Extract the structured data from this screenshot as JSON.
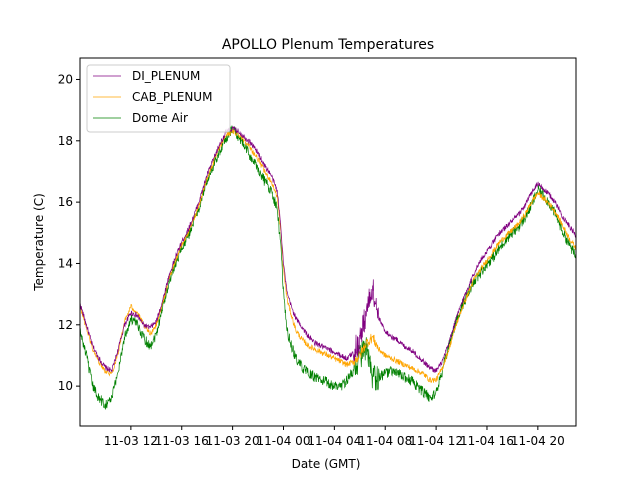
{
  "chart_data": {
    "type": "line",
    "title": "APOLLO Plenum Temperatures",
    "xlabel": "Date (GMT)",
    "ylabel": "Temperature (C)",
    "x_unit": "hours since 11-03 08:00",
    "xlim": [
      0,
      39
    ],
    "ylim": [
      8.7,
      20.7
    ],
    "yticks": [
      10,
      12,
      14,
      16,
      18,
      20
    ],
    "xticks": [
      {
        "x": 4,
        "label": "11-03 12"
      },
      {
        "x": 8,
        "label": "11-03 16"
      },
      {
        "x": 12,
        "label": "11-03 20"
      },
      {
        "x": 16,
        "label": "11-04 00"
      },
      {
        "x": 20,
        "label": "11-04 04"
      },
      {
        "x": 24,
        "label": "11-04 08"
      },
      {
        "x": 28,
        "label": "11-04 12"
      },
      {
        "x": 32,
        "label": "11-04 16"
      },
      {
        "x": 36,
        "label": "11-04 20"
      }
    ],
    "legend_position": "top-left",
    "series": [
      {
        "name": "DI_PLENUM",
        "color": "#800080",
        "x": [
          0,
          0.5,
          1,
          1.5,
          2,
          2.5,
          3,
          3.5,
          4,
          4.5,
          5,
          5.5,
          6,
          6.5,
          7,
          7.5,
          8,
          8.5,
          9,
          9.5,
          10,
          10.5,
          11,
          11.5,
          12,
          12.5,
          13,
          13.5,
          14,
          14.5,
          15,
          15.5,
          15.8,
          16.0,
          16.3,
          16.7,
          17,
          17.5,
          18,
          18.5,
          19,
          19.5,
          20,
          20.5,
          21,
          21.5,
          22,
          22.5,
          23,
          23.5,
          24,
          24.5,
          25,
          25.5,
          26,
          26.5,
          27,
          27.5,
          28,
          28.5,
          29,
          29.5,
          30,
          30.5,
          31,
          31.5,
          32,
          32.5,
          33,
          33.5,
          34,
          34.5,
          35,
          35.5,
          36,
          36.5,
          37,
          37.5,
          38,
          38.5,
          39
        ],
        "y": [
          12.7,
          12.0,
          11.3,
          10.9,
          10.6,
          10.5,
          11.2,
          12.0,
          12.4,
          12.3,
          12.0,
          11.9,
          12.1,
          12.8,
          13.6,
          14.2,
          14.7,
          15.1,
          15.6,
          16.2,
          16.9,
          17.4,
          17.9,
          18.3,
          18.4,
          18.3,
          18.1,
          17.9,
          17.6,
          17.2,
          16.9,
          16.4,
          15.2,
          14.0,
          13.0,
          12.5,
          12.2,
          11.9,
          11.6,
          11.4,
          11.3,
          11.2,
          11.1,
          11.0,
          10.9,
          11.1,
          11.5,
          12.4,
          13.2,
          12.2,
          11.8,
          11.6,
          11.5,
          11.3,
          11.2,
          11.0,
          10.8,
          10.6,
          10.5,
          10.8,
          11.4,
          12.1,
          12.7,
          13.2,
          13.7,
          14.1,
          14.4,
          14.7,
          15.0,
          15.2,
          15.4,
          15.6,
          15.9,
          16.3,
          16.6,
          16.4,
          16.2,
          15.9,
          15.5,
          15.2,
          14.9
        ]
      },
      {
        "name": "CAB_PLENUM",
        "color": "#ffa500",
        "x": [
          0,
          0.5,
          1,
          1.5,
          2,
          2.5,
          3,
          3.5,
          4,
          4.5,
          5,
          5.5,
          6,
          6.5,
          7,
          7.5,
          8,
          8.5,
          9,
          9.5,
          10,
          10.5,
          11,
          11.5,
          12,
          12.5,
          13,
          13.5,
          14,
          14.5,
          15,
          15.5,
          15.8,
          16.0,
          16.3,
          16.7,
          17,
          17.5,
          18,
          18.5,
          19,
          19.5,
          20,
          20.5,
          21,
          21.5,
          22,
          22.5,
          23,
          23.5,
          24,
          24.5,
          25,
          25.5,
          26,
          26.5,
          27,
          27.5,
          28,
          28.5,
          29,
          29.5,
          30,
          30.5,
          31,
          31.5,
          32,
          32.5,
          33,
          33.5,
          34,
          34.5,
          35,
          35.5,
          36,
          36.5,
          37,
          37.5,
          38,
          38.5,
          39
        ],
        "y": [
          12.6,
          11.9,
          11.2,
          10.8,
          10.5,
          10.4,
          11.1,
          12.1,
          12.6,
          12.4,
          12.0,
          11.7,
          12.0,
          12.7,
          13.5,
          14.1,
          14.6,
          15.0,
          15.5,
          16.1,
          16.8,
          17.3,
          17.8,
          18.2,
          18.3,
          18.2,
          18.0,
          17.7,
          17.4,
          17.0,
          16.7,
          16.2,
          15.0,
          13.8,
          12.8,
          12.2,
          11.8,
          11.5,
          11.3,
          11.2,
          11.1,
          11.0,
          10.9,
          10.8,
          10.7,
          10.8,
          11.0,
          11.4,
          11.6,
          11.2,
          11.0,
          10.9,
          10.8,
          10.7,
          10.6,
          10.5,
          10.4,
          10.2,
          10.2,
          10.6,
          11.2,
          11.9,
          12.5,
          13.0,
          13.5,
          13.8,
          14.1,
          14.4,
          14.7,
          14.9,
          15.1,
          15.3,
          15.6,
          16.0,
          16.3,
          16.1,
          15.9,
          15.6,
          15.2,
          14.8,
          14.5
        ]
      },
      {
        "name": "Dome Air",
        "color": "#008000",
        "x": [
          0,
          0.5,
          1,
          1.5,
          2,
          2.5,
          3,
          3.5,
          4,
          4.5,
          5,
          5.5,
          6,
          6.5,
          7,
          7.5,
          8,
          8.5,
          9,
          9.5,
          10,
          10.5,
          11,
          11.5,
          12,
          12.5,
          13,
          13.5,
          14,
          14.5,
          15,
          15.5,
          15.8,
          16.0,
          16.3,
          16.7,
          17,
          17.5,
          18,
          18.5,
          19,
          19.5,
          20,
          20.5,
          21,
          21.5,
          22,
          22.5,
          23,
          23.5,
          24,
          24.5,
          25,
          25.5,
          26,
          26.5,
          27,
          27.5,
          28,
          28.5,
          29,
          29.5,
          30,
          30.5,
          31,
          31.5,
          32,
          32.5,
          33,
          33.5,
          34,
          34.5,
          35,
          35.5,
          36,
          36.5,
          37,
          37.5,
          38,
          38.5,
          39
        ],
        "y": [
          11.8,
          11.0,
          10.0,
          9.6,
          9.4,
          9.6,
          10.5,
          11.6,
          12.2,
          12.0,
          11.6,
          11.3,
          11.7,
          12.6,
          13.4,
          14.0,
          14.5,
          14.9,
          15.4,
          16.0,
          16.7,
          17.2,
          17.7,
          18.1,
          18.4,
          18.1,
          17.8,
          17.4,
          17.1,
          16.7,
          16.4,
          15.8,
          14.5,
          13.0,
          11.8,
          11.2,
          10.9,
          10.6,
          10.4,
          10.3,
          10.2,
          10.1,
          10.0,
          10.0,
          10.2,
          10.5,
          11.0,
          11.2,
          10.2,
          10.3,
          10.4,
          10.5,
          10.4,
          10.3,
          10.2,
          10.0,
          9.8,
          9.6,
          9.8,
          10.5,
          11.3,
          12.0,
          12.6,
          13.0,
          13.4,
          13.7,
          14.0,
          14.2,
          14.5,
          14.8,
          15.0,
          15.2,
          15.5,
          15.9,
          16.4,
          16.2,
          15.9,
          15.5,
          15.0,
          14.6,
          14.2
        ]
      }
    ]
  }
}
